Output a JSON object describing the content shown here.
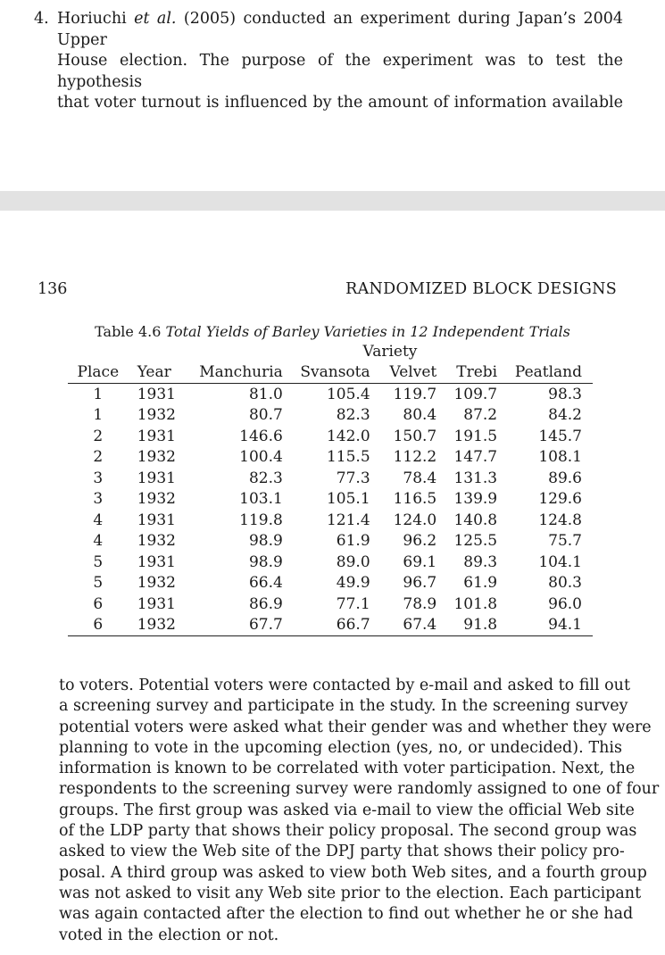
{
  "top_page": {
    "exercise_number": "4.",
    "exercise_lines": [
      "Horiuchi et al. (2005) conducted an experiment during Japan’s 2004 Upper",
      "House election. The purpose of the experiment was to test the hypothesis",
      "that voter turnout is influenced by the amount of information available"
    ]
  },
  "bottom_page": {
    "page_number": "136",
    "running_head": "RANDOMIZED BLOCK DESIGNS",
    "table": {
      "caption_label": "Table 4.6",
      "caption_title": "Total Yields of Barley Varieties in 12 Independent Trials",
      "span_header": "Variety",
      "columns": [
        "Place",
        "Year",
        "Manchuria",
        "Svansota",
        "Velvet",
        "Trebi",
        "Peatland"
      ],
      "rows": [
        [
          "1",
          "1931",
          "81.0",
          "105.4",
          "119.7",
          "109.7",
          "98.3"
        ],
        [
          "1",
          "1932",
          "80.7",
          "82.3",
          "80.4",
          "87.2",
          "84.2"
        ],
        [
          "2",
          "1931",
          "146.6",
          "142.0",
          "150.7",
          "191.5",
          "145.7"
        ],
        [
          "2",
          "1932",
          "100.4",
          "115.5",
          "112.2",
          "147.7",
          "108.1"
        ],
        [
          "3",
          "1931",
          "82.3",
          "77.3",
          "78.4",
          "131.3",
          "89.6"
        ],
        [
          "3",
          "1932",
          "103.1",
          "105.1",
          "116.5",
          "139.9",
          "129.6"
        ],
        [
          "4",
          "1931",
          "119.8",
          "121.4",
          "124.0",
          "140.8",
          "124.8"
        ],
        [
          "4",
          "1932",
          "98.9",
          "61.9",
          "96.2",
          "125.5",
          "75.7"
        ],
        [
          "5",
          "1931",
          "98.9",
          "89.0",
          "69.1",
          "89.3",
          "104.1"
        ],
        [
          "5",
          "1932",
          "66.4",
          "49.9",
          "96.7",
          "61.9",
          "80.3"
        ],
        [
          "6",
          "1931",
          "86.9",
          "77.1",
          "78.9",
          "101.8",
          "96.0"
        ],
        [
          "6",
          "1932",
          "67.7",
          "66.7",
          "67.4",
          "91.8",
          "94.1"
        ]
      ]
    },
    "paragraph_lines": [
      "to voters. Potential voters were contacted by e-mail and asked to fill out",
      "a screening survey and participate in the study. In the screening survey",
      "potential voters were asked what their gender was and whether they were",
      "planning to vote in the upcoming election (yes, no, or undecided). This",
      "information is known to be correlated with voter participation. Next, the",
      "respondents to the screening survey were randomly assigned to one of four",
      "groups. The first group was asked via e-mail to view the official Web site",
      "of the LDP party that shows their policy proposal. The second group was",
      "asked to view the Web site of the DPJ party that shows their policy pro-",
      "posal. A third group was asked to view both Web sites, and a fourth group",
      "was not asked to visit any Web site prior to the election. Each participant",
      "was again contacted after the election to find out whether he or she had",
      "voted in the election or not."
    ]
  }
}
